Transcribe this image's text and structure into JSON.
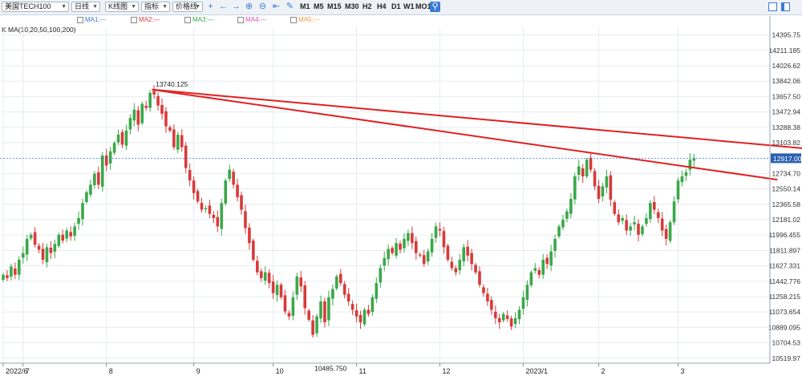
{
  "toolbar": {
    "symbol": "美国TECH100",
    "period": "日线",
    "chart_style": "K线图",
    "indicator": "指标",
    "price_line": "价格线",
    "timeframes": [
      "M1",
      "M5",
      "M15",
      "M30",
      "H2",
      "H4",
      "D1",
      "W1",
      "MO1"
    ],
    "icons": [
      "crosshair-icon",
      "arrow-left-icon",
      "arrow-right-icon",
      "zoom-in-icon",
      "zoom-out-icon",
      "fit-icon",
      "pencil-icon"
    ]
  },
  "ma_legend": [
    {
      "label": "MA1:---",
      "color": "#3a7bd5"
    },
    {
      "label": "MA2:---",
      "color": "#e03b3b"
    },
    {
      "label": "MA3:---",
      "color": "#3aa84a"
    },
    {
      "label": "MA4:---",
      "color": "#d64fb8"
    },
    {
      "label": "MA5:---",
      "color": "#e8963a"
    }
  ],
  "ma_params": "K   MA(10,20,50,100,200)",
  "chart_data": {
    "type": "candlestick",
    "y_ticks": [
      "14395.75",
      "14211.185",
      "14026.62",
      "13842.06",
      "13657.50",
      "13472.94",
      "13288.38",
      "13103.82",
      "12734.70",
      "12550.14",
      "12365.58",
      "12181.02",
      "11996.455",
      "11811.897",
      "11627.331",
      "11442.776",
      "11258.215",
      "11073.654",
      "10889.095",
      "10704.53",
      "10519.97"
    ],
    "ylim": [
      10460,
      14430
    ],
    "x_labels": [
      {
        "label": "2022/6",
        "i": 0
      },
      {
        "label": "7",
        "i": 5
      },
      {
        "label": "8",
        "i": 26
      },
      {
        "label": "9",
        "i": 48
      },
      {
        "label": "10",
        "i": 68
      },
      {
        "label": "11",
        "i": 89
      },
      {
        "label": "12",
        "i": 110
      },
      {
        "label": "2023/1",
        "i": 131
      },
      {
        "label": "2",
        "i": 150
      },
      {
        "label": "3",
        "i": 170
      }
    ],
    "current_price": "12917.00",
    "current_value": 12917,
    "annotations": [
      {
        "text": "13740.125",
        "i": 38,
        "value": 13740.125,
        "pos": "above"
      },
      {
        "text": "10485.750",
        "i": 78,
        "value": 10485.75,
        "pos": "below"
      }
    ],
    "trendlines": [
      {
        "x1": 37.5,
        "y1": 13740,
        "x2": 203,
        "y2": 13030,
        "color": "#e02020"
      },
      {
        "x1": 37.5,
        "y1": 13740,
        "x2": 195,
        "y2": 12660,
        "color": "#e02020"
      }
    ],
    "up_color": "#3aa84a",
    "down_color": "#d93a3a",
    "closes": [
      11520,
      11480,
      11620,
      11520,
      11700,
      11780,
      11950,
      12000,
      11880,
      11820,
      11700,
      11850,
      11780,
      11890,
      12000,
      11930,
      12050,
      11980,
      12100,
      12200,
      12380,
      12510,
      12600,
      12730,
      12600,
      12950,
      12830,
      13000,
      13100,
      13200,
      13080,
      13250,
      13400,
      13500,
      13320,
      13570,
      13520,
      13700,
      13680,
      13550,
      13450,
      13300,
      13250,
      13050,
      13200,
      13050,
      12800,
      12650,
      12500,
      12400,
      12300,
      12320,
      12250,
      12200,
      12100,
      12380,
      12650,
      12780,
      12600,
      12450,
      12300,
      12080,
      11900,
      11700,
      11550,
      11480,
      11550,
      11420,
      11300,
      11400,
      11250,
      11080,
      11020,
      11250,
      11500,
      11380,
      11120,
      10980,
      10800,
      11020,
      11200,
      10950,
      11250,
      11350,
      11500,
      11420,
      11280,
      11200,
      11100,
      11020,
      10950,
      11100,
      11050,
      11250,
      11420,
      11600,
      11720,
      11830,
      11780,
      11900,
      11820,
      11950,
      12020,
      11900,
      11780,
      11750,
      11650,
      11800,
      11950,
      12100,
      12050,
      11850,
      11700,
      11600,
      11550,
      11700,
      11850,
      11750,
      11650,
      11550,
      11400,
      11300,
      11200,
      11100,
      11000,
      10950,
      11050,
      10990,
      10900,
      11000,
      11100,
      11250,
      11400,
      11550,
      11600,
      11520,
      11700,
      11650,
      11800,
      11950,
      12100,
      12180,
      12280,
      12430,
      12700,
      12820,
      12700,
      12900,
      12780,
      12580,
      12430,
      12580,
      12700,
      12420,
      12250,
      12150,
      12200,
      12050,
      12100,
      12150,
      12000,
      12100,
      12200,
      12380,
      12300,
      12200,
      12050,
      11950,
      12150,
      12400,
      12650,
      12700,
      12750,
      12900,
      12917
    ]
  }
}
